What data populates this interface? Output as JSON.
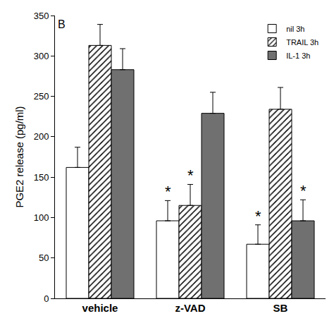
{
  "chart_data": {
    "type": "bar",
    "title": "B",
    "y_label": "PGE2 release (pg/ml)",
    "categories": [
      "vehicle",
      "z-VAD",
      "SB"
    ],
    "series": [
      {
        "name": "nil 3h",
        "color": "#ffffff",
        "marker": "solid",
        "values": [
          162,
          96,
          67
        ],
        "errors": [
          25,
          25,
          24
        ],
        "annotations": [
          null,
          "*",
          "*"
        ]
      },
      {
        "name": "TRAIL 3h",
        "color": "#ffffff",
        "marker": "hatch",
        "values": [
          313,
          115,
          234
        ],
        "errors": [
          26,
          26,
          27
        ],
        "annotations": [
          null,
          "*",
          null
        ]
      },
      {
        "name": "IL-1 3h",
        "color": "#707070",
        "marker": "solid",
        "values": [
          283,
          229,
          96
        ],
        "errors": [
          26,
          26,
          26
        ],
        "annotations": [
          null,
          null,
          "*"
        ]
      }
    ],
    "ylim": [
      0,
      350
    ],
    "yticks": [
      0,
      50,
      100,
      150,
      200,
      250,
      300,
      350
    ],
    "grid": false,
    "legend": "top right"
  }
}
